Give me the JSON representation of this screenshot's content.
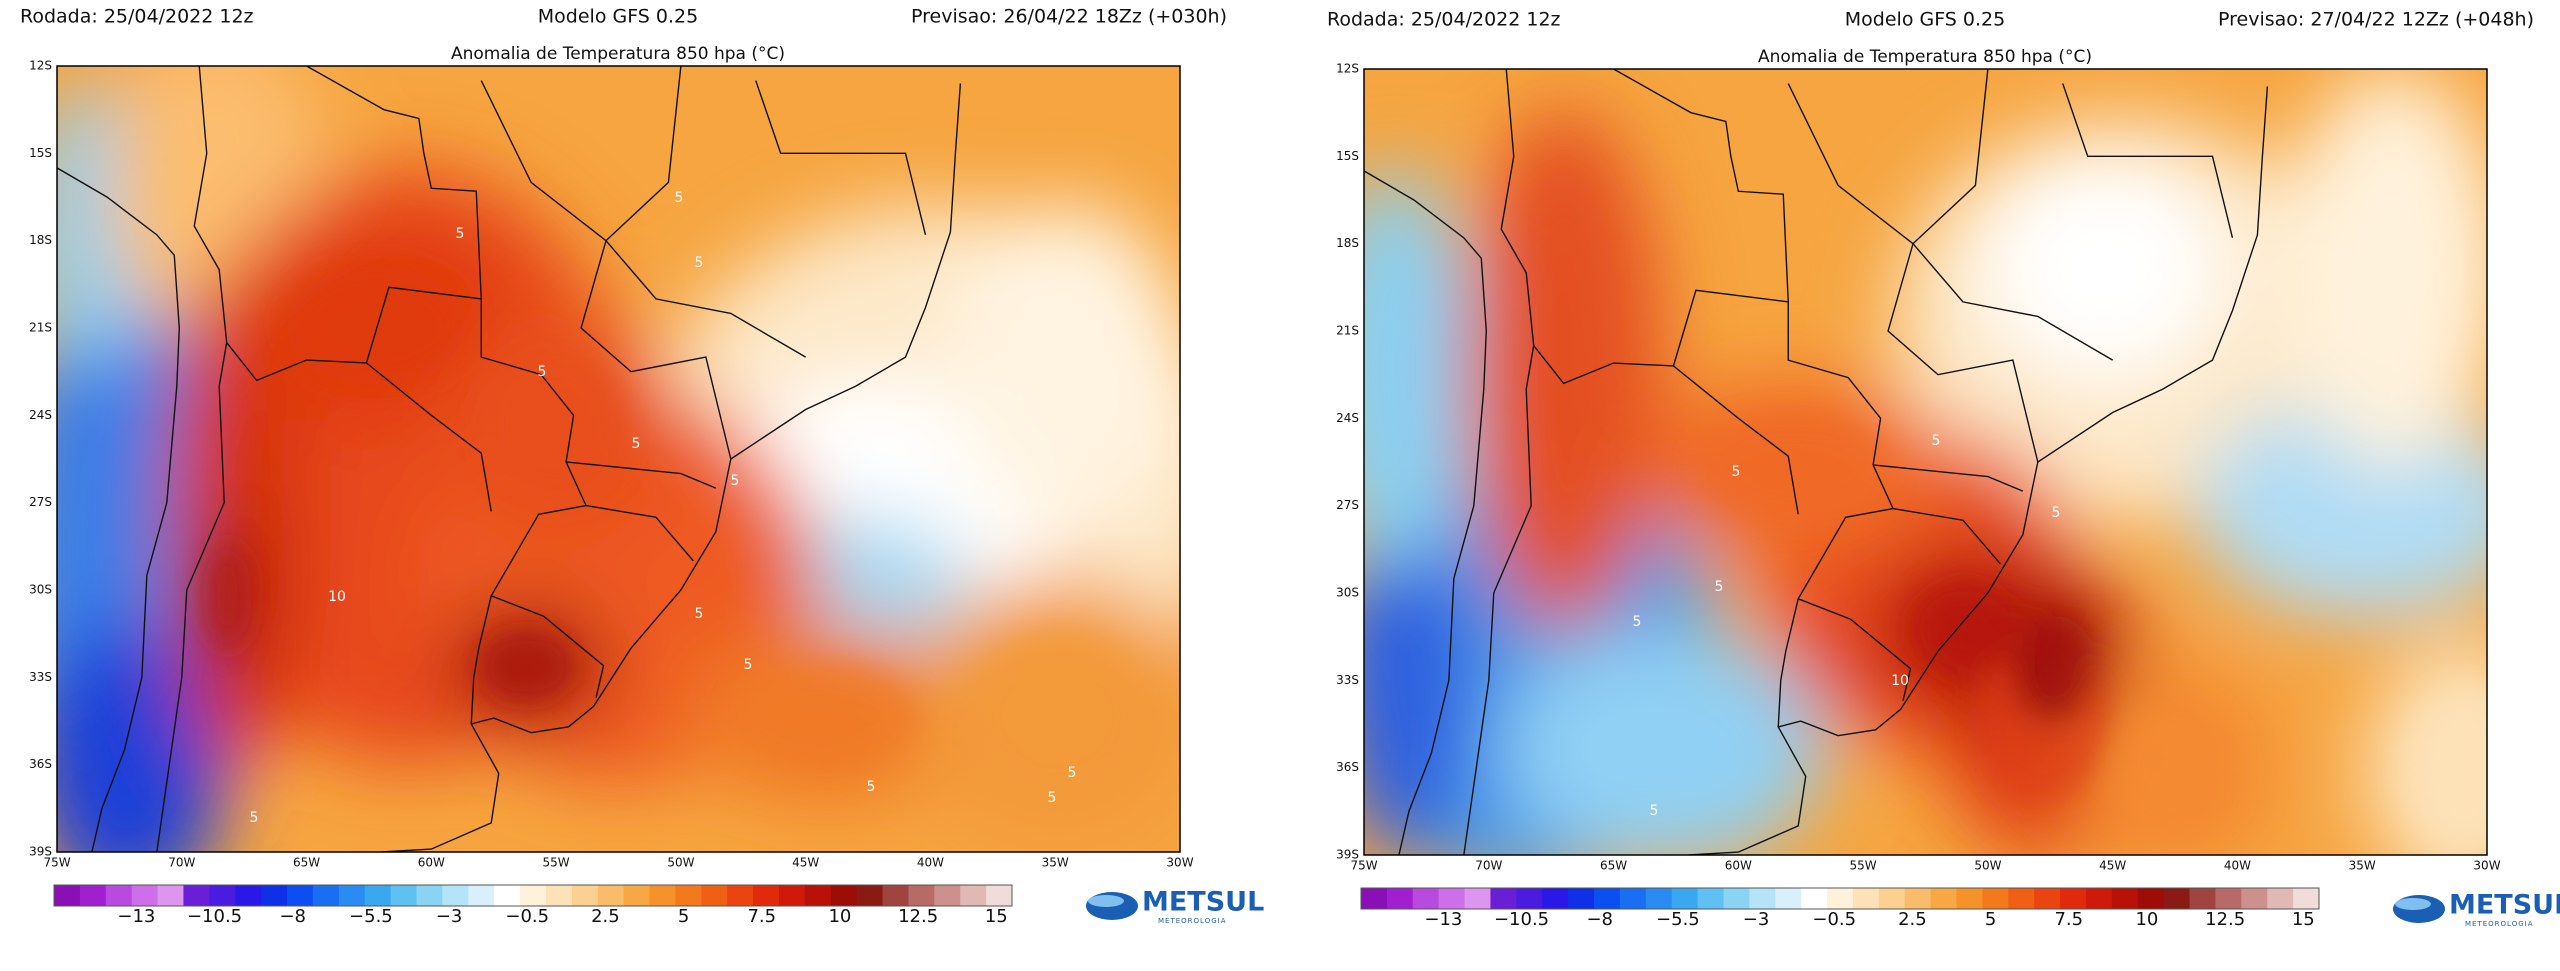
{
  "panels": [
    {
      "run": "Rodada: 25/04/2022 12z",
      "model": "Modelo GFS 0.25",
      "forecast": "Previsao: 26/04/22 18Zz (+030h)",
      "title": "Anomalia de Temperatura 850 hpa (°C)",
      "lat_ticks": [
        "12S",
        "15S",
        "18S",
        "21S",
        "24S",
        "27S",
        "30S",
        "33S",
        "36S",
        "39S"
      ],
      "lon_ticks": [
        "75W",
        "70W",
        "65W",
        "60W",
        "55W",
        "50W",
        "45W",
        "40W",
        "35W",
        "30W"
      ],
      "contour_labels": [
        "5",
        "5",
        "5",
        "5",
        "5",
        "5",
        "5",
        "5",
        "5",
        "5",
        "5",
        "5",
        "10"
      ],
      "colorbar_labels": [
        "−13",
        "−10.5",
        "−8",
        "−5.5",
        "−3",
        "−0.5",
        "2.5",
        "5",
        "7.5",
        "10",
        "12.5",
        "15"
      ],
      "logo": "METSUL",
      "logo_sub": "METEOROLOGIA"
    },
    {
      "run": "Rodada: 25/04/2022 12z",
      "model": "Modelo GFS 0.25",
      "forecast": "Previsao: 27/04/22 12Zz (+048h)",
      "title": "Anomalia de Temperatura 850 hpa (°C)",
      "lat_ticks": [
        "12S",
        "15S",
        "18S",
        "21S",
        "24S",
        "27S",
        "30S",
        "33S",
        "36S",
        "39S"
      ],
      "lon_ticks": [
        "75W",
        "70W",
        "65W",
        "60W",
        "55W",
        "50W",
        "45W",
        "40W",
        "35W",
        "30W"
      ],
      "contour_labels": [
        "5",
        "5",
        "5",
        "5",
        "5",
        "5",
        "10"
      ],
      "colorbar_labels": [
        "−13",
        "−10.5",
        "−8",
        "−5.5",
        "−3",
        "−0.5",
        "2.5",
        "5",
        "7.5",
        "10",
        "12.5",
        "15"
      ],
      "logo": "METSUL",
      "logo_sub": "METEOROLOGIA"
    }
  ]
}
